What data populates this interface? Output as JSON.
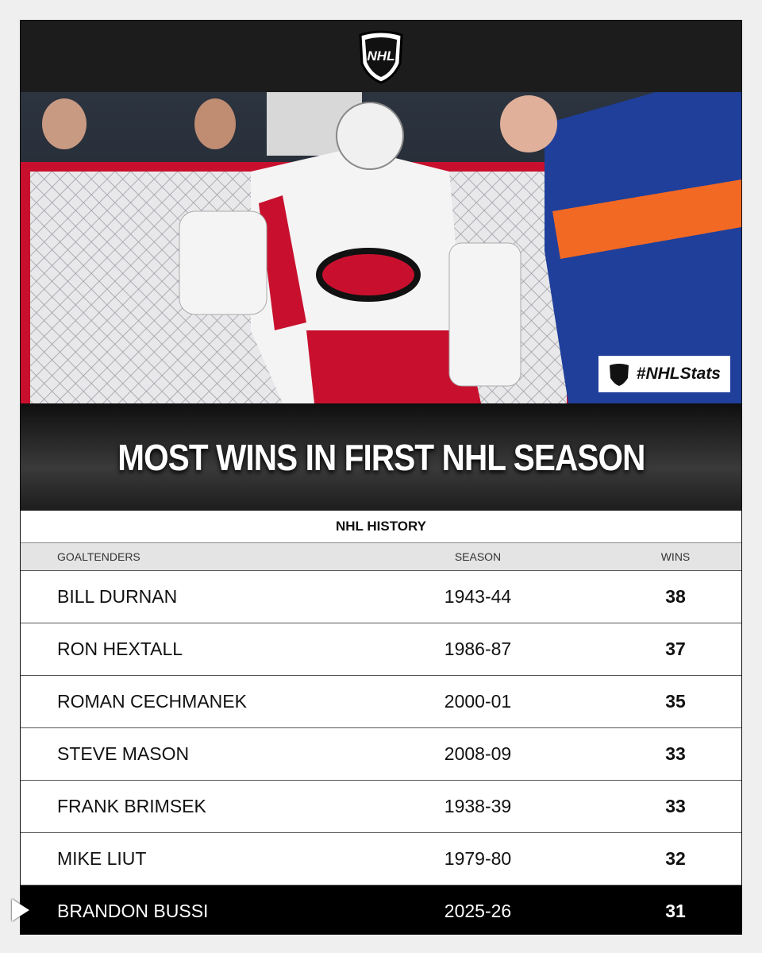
{
  "header": {
    "logo": "NHL"
  },
  "photo": {
    "badge": "#NHLStats"
  },
  "title": "MOST WINS IN FIRST NHL SEASON",
  "table": {
    "caption": "NHL HISTORY",
    "columns": [
      "GOALTENDERS",
      "SEASON",
      "WINS"
    ],
    "rows": [
      [
        "BILL DURNAN",
        "1943-44",
        38
      ],
      [
        "RON HEXTALL",
        "1986-87",
        37
      ],
      [
        "ROMAN CECHMANEK",
        "2000-01",
        35
      ],
      [
        "STEVE MASON",
        "2008-09",
        33
      ],
      [
        "FRANK BRIMSEK",
        "1938-39",
        33
      ],
      [
        "MIKE LIUT",
        "1979-80",
        32
      ],
      [
        "BRANDON BUSSI",
        "2025-26",
        31
      ]
    ]
  }
}
